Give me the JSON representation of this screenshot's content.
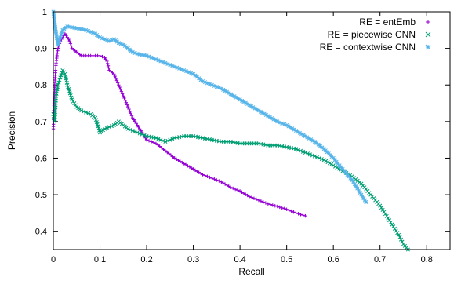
{
  "chart_data": {
    "type": "line",
    "title": "",
    "xlabel": "Recall",
    "ylabel": "Precision",
    "xlim": [
      0,
      0.85
    ],
    "ylim": [
      0.35,
      1.0
    ],
    "xticks": [
      0,
      0.1,
      0.2,
      0.3,
      0.4,
      0.5,
      0.6,
      0.7,
      0.8
    ],
    "yticks": [
      0.4,
      0.5,
      0.6,
      0.7,
      0.8,
      0.9,
      1
    ],
    "grid": false,
    "legend_position": "top-right",
    "series": [
      {
        "name": "RE = entEmb",
        "color": "#9400d3",
        "marker": "plus",
        "points": [
          [
            0.0,
            0.68
          ],
          [
            0.003,
            0.8
          ],
          [
            0.006,
            0.86
          ],
          [
            0.01,
            0.9
          ],
          [
            0.015,
            0.92
          ],
          [
            0.02,
            0.93
          ],
          [
            0.025,
            0.94
          ],
          [
            0.03,
            0.93
          ],
          [
            0.035,
            0.92
          ],
          [
            0.04,
            0.9
          ],
          [
            0.05,
            0.89
          ],
          [
            0.06,
            0.88
          ],
          [
            0.08,
            0.88
          ],
          [
            0.1,
            0.88
          ],
          [
            0.11,
            0.875
          ],
          [
            0.115,
            0.865
          ],
          [
            0.12,
            0.84
          ],
          [
            0.13,
            0.83
          ],
          [
            0.14,
            0.8
          ],
          [
            0.15,
            0.77
          ],
          [
            0.16,
            0.74
          ],
          [
            0.17,
            0.71
          ],
          [
            0.18,
            0.69
          ],
          [
            0.19,
            0.67
          ],
          [
            0.2,
            0.65
          ],
          [
            0.22,
            0.64
          ],
          [
            0.24,
            0.62
          ],
          [
            0.26,
            0.6
          ],
          [
            0.28,
            0.585
          ],
          [
            0.3,
            0.57
          ],
          [
            0.32,
            0.555
          ],
          [
            0.34,
            0.545
          ],
          [
            0.36,
            0.535
          ],
          [
            0.38,
            0.52
          ],
          [
            0.4,
            0.51
          ],
          [
            0.42,
            0.495
          ],
          [
            0.44,
            0.485
          ],
          [
            0.46,
            0.475
          ],
          [
            0.48,
            0.468
          ],
          [
            0.5,
            0.46
          ],
          [
            0.52,
            0.45
          ],
          [
            0.54,
            0.442
          ]
        ]
      },
      {
        "name": "RE = piecewise CNN",
        "color": "#009e73",
        "marker": "cross",
        "points": [
          [
            0.0,
            0.72
          ],
          [
            0.003,
            0.7
          ],
          [
            0.006,
            0.77
          ],
          [
            0.01,
            0.8
          ],
          [
            0.015,
            0.82
          ],
          [
            0.02,
            0.84
          ],
          [
            0.025,
            0.83
          ],
          [
            0.03,
            0.8
          ],
          [
            0.04,
            0.76
          ],
          [
            0.05,
            0.74
          ],
          [
            0.06,
            0.73
          ],
          [
            0.08,
            0.72
          ],
          [
            0.09,
            0.71
          ],
          [
            0.1,
            0.67
          ],
          [
            0.11,
            0.68
          ],
          [
            0.13,
            0.69
          ],
          [
            0.14,
            0.7
          ],
          [
            0.15,
            0.69
          ],
          [
            0.16,
            0.68
          ],
          [
            0.18,
            0.67
          ],
          [
            0.2,
            0.66
          ],
          [
            0.22,
            0.655
          ],
          [
            0.24,
            0.645
          ],
          [
            0.26,
            0.655
          ],
          [
            0.28,
            0.66
          ],
          [
            0.3,
            0.66
          ],
          [
            0.32,
            0.655
          ],
          [
            0.34,
            0.65
          ],
          [
            0.36,
            0.645
          ],
          [
            0.38,
            0.645
          ],
          [
            0.4,
            0.64
          ],
          [
            0.42,
            0.64
          ],
          [
            0.44,
            0.64
          ],
          [
            0.46,
            0.635
          ],
          [
            0.48,
            0.635
          ],
          [
            0.5,
            0.63
          ],
          [
            0.52,
            0.625
          ],
          [
            0.54,
            0.615
          ],
          [
            0.56,
            0.605
          ],
          [
            0.58,
            0.595
          ],
          [
            0.6,
            0.58
          ],
          [
            0.62,
            0.565
          ],
          [
            0.64,
            0.55
          ],
          [
            0.66,
            0.53
          ],
          [
            0.68,
            0.5
          ],
          [
            0.7,
            0.47
          ],
          [
            0.72,
            0.43
          ],
          [
            0.74,
            0.39
          ],
          [
            0.75,
            0.365
          ],
          [
            0.76,
            0.35
          ]
        ]
      },
      {
        "name": "RE = contextwise CNN",
        "color": "#56b4e9",
        "marker": "star",
        "points": [
          [
            0.0,
            1.0
          ],
          [
            0.003,
            0.97
          ],
          [
            0.006,
            0.94
          ],
          [
            0.01,
            0.91
          ],
          [
            0.015,
            0.93
          ],
          [
            0.02,
            0.95
          ],
          [
            0.03,
            0.96
          ],
          [
            0.05,
            0.955
          ],
          [
            0.07,
            0.95
          ],
          [
            0.09,
            0.94
          ],
          [
            0.1,
            0.93
          ],
          [
            0.12,
            0.92
          ],
          [
            0.13,
            0.925
          ],
          [
            0.14,
            0.915
          ],
          [
            0.15,
            0.91
          ],
          [
            0.16,
            0.9
          ],
          [
            0.17,
            0.89
          ],
          [
            0.18,
            0.885
          ],
          [
            0.2,
            0.88
          ],
          [
            0.22,
            0.87
          ],
          [
            0.24,
            0.86
          ],
          [
            0.26,
            0.85
          ],
          [
            0.28,
            0.84
          ],
          [
            0.3,
            0.83
          ],
          [
            0.32,
            0.81
          ],
          [
            0.34,
            0.8
          ],
          [
            0.36,
            0.79
          ],
          [
            0.38,
            0.775
          ],
          [
            0.4,
            0.76
          ],
          [
            0.42,
            0.745
          ],
          [
            0.44,
            0.73
          ],
          [
            0.46,
            0.715
          ],
          [
            0.48,
            0.7
          ],
          [
            0.5,
            0.69
          ],
          [
            0.52,
            0.675
          ],
          [
            0.54,
            0.66
          ],
          [
            0.56,
            0.645
          ],
          [
            0.58,
            0.625
          ],
          [
            0.6,
            0.6
          ],
          [
            0.62,
            0.57
          ],
          [
            0.64,
            0.54
          ],
          [
            0.66,
            0.5
          ],
          [
            0.67,
            0.48
          ]
        ]
      }
    ]
  }
}
